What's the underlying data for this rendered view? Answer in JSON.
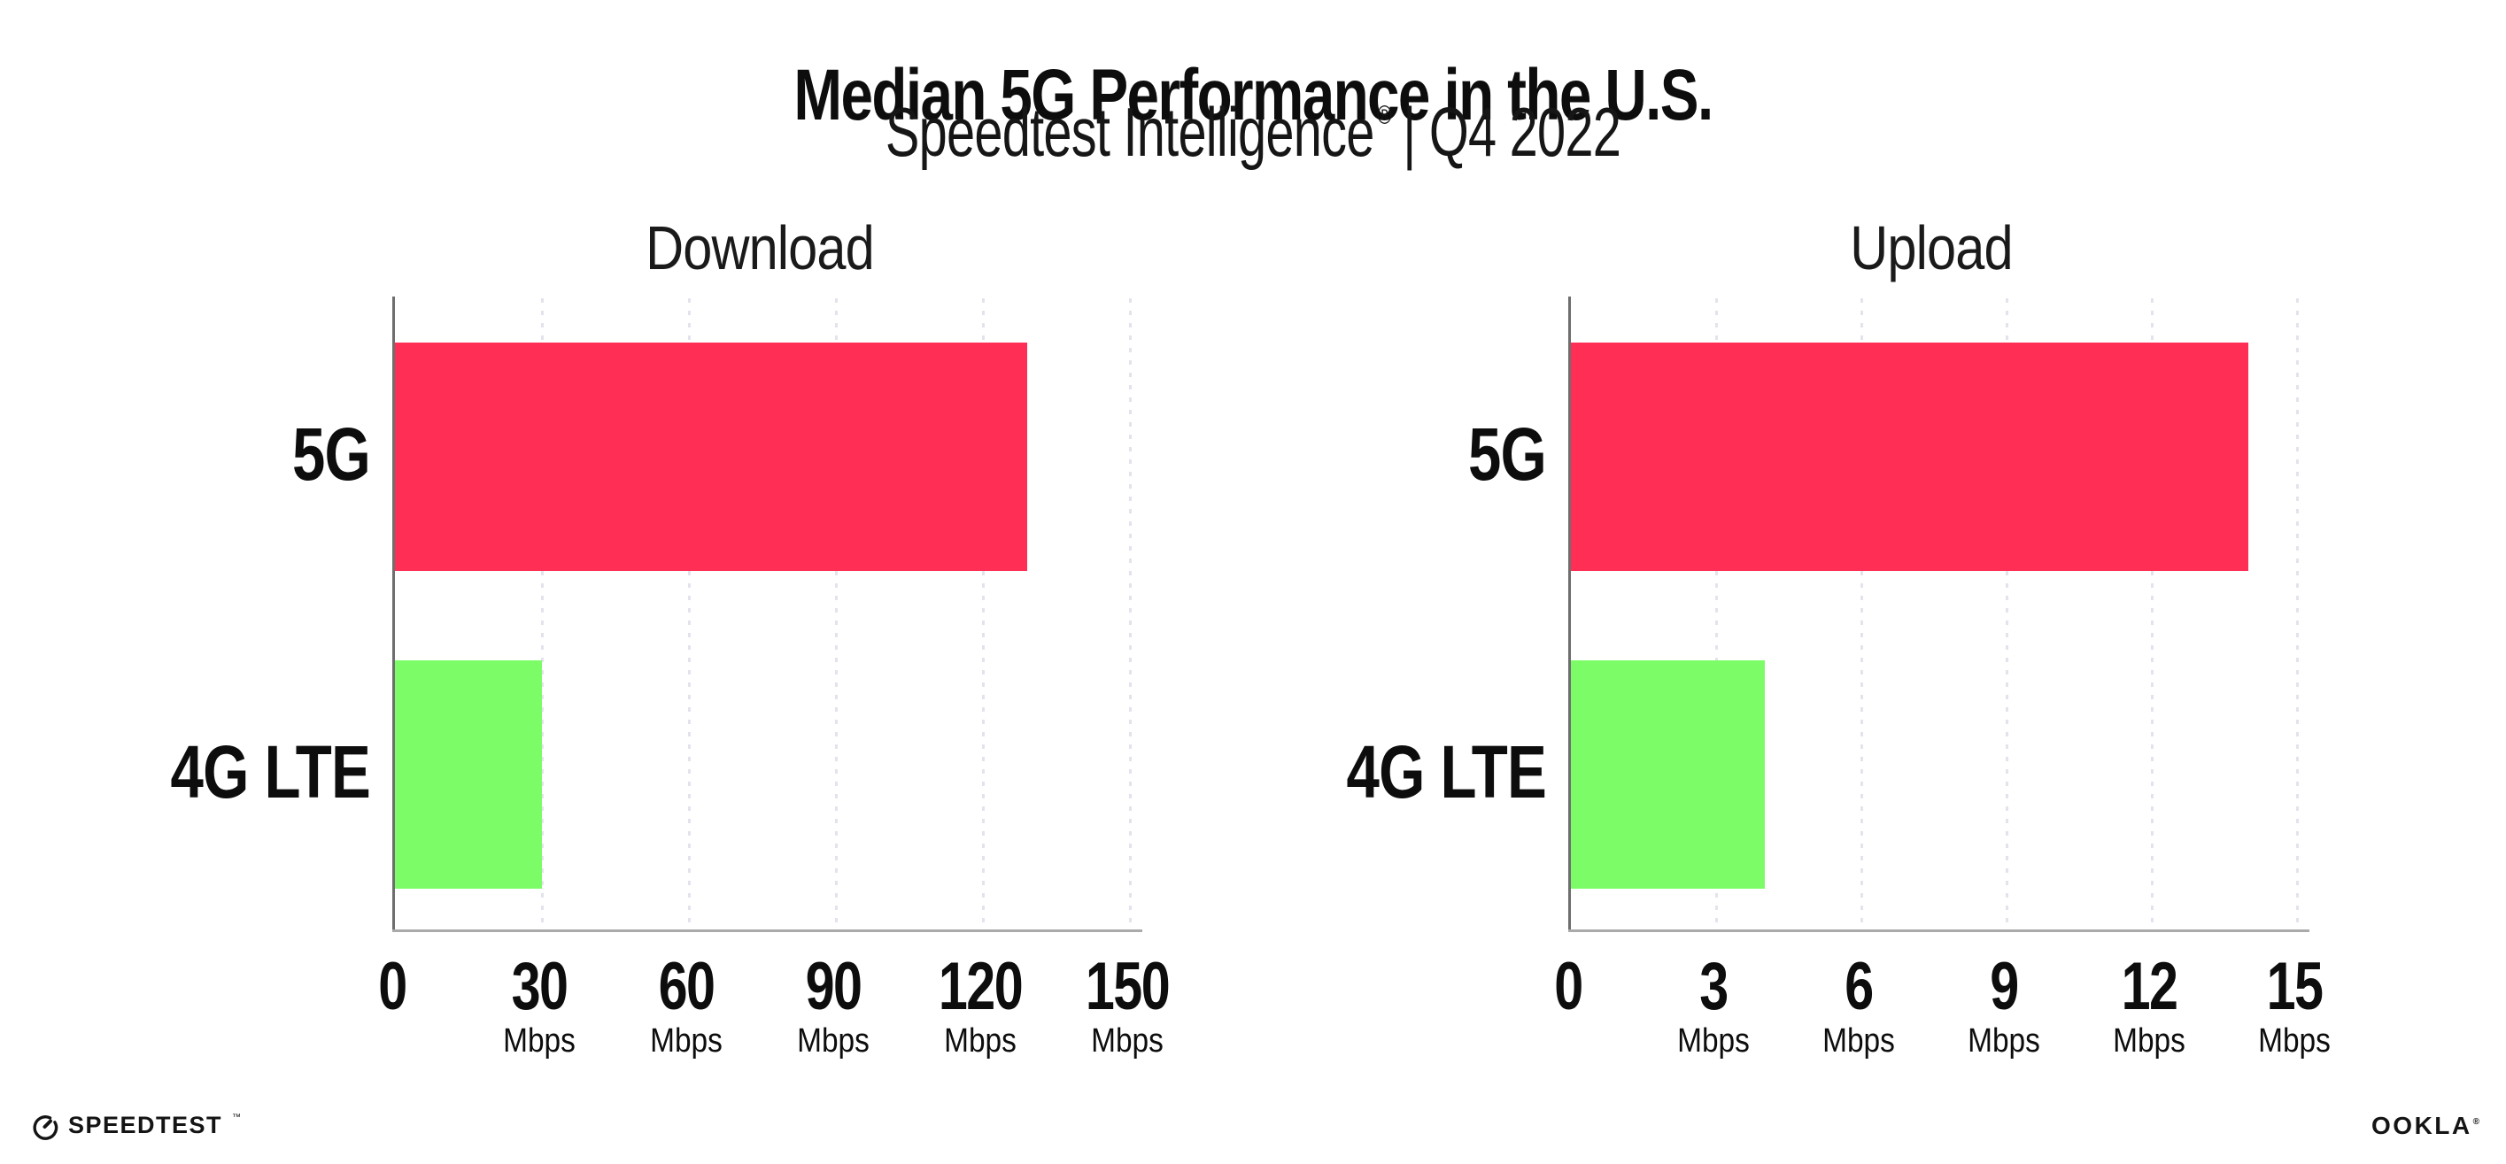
{
  "header": {
    "title": "Median 5G Performance in the U.S.",
    "subtitle_main": "Speedtest Intelligence",
    "subtitle_reg": "®",
    "subtitle_rest": "| Q4 2022"
  },
  "colors": {
    "bar_5g": "#FF2E55",
    "bar_4g_lte": "#7CFD67",
    "gridline": "#E3E3ED",
    "x_axis": "#AAAAAA",
    "y_axis": "#6E6E6E",
    "text": "#0D0D0D"
  },
  "chart_data": [
    {
      "type": "bar",
      "orientation": "horizontal",
      "title": "Download",
      "categories": [
        "5G",
        "4G LTE"
      ],
      "values": [
        129,
        30
      ],
      "unit": "Mbps",
      "xlim": [
        0,
        150
      ],
      "xticks": [
        0,
        30,
        60,
        90,
        120,
        150
      ],
      "bar_colors": [
        "#FF2E55",
        "#7CFD67"
      ],
      "grid": "dotted-vertical-gridlines",
      "legend": "none"
    },
    {
      "type": "bar",
      "orientation": "horizontal",
      "title": "Upload",
      "categories": [
        "5G",
        "4G LTE"
      ],
      "values": [
        14,
        4
      ],
      "unit": "Mbps",
      "xlim": [
        0,
        15
      ],
      "xticks": [
        0,
        3,
        6,
        9,
        12,
        15
      ],
      "bar_colors": [
        "#FF2E55",
        "#7CFD67"
      ],
      "grid": "dotted-vertical-gridlines",
      "legend": "none"
    }
  ],
  "footer": {
    "speedtest_label": "SPEEDTEST",
    "speedtest_tm": "™",
    "ookla_label": "OOKLA",
    "ookla_reg": "®"
  }
}
